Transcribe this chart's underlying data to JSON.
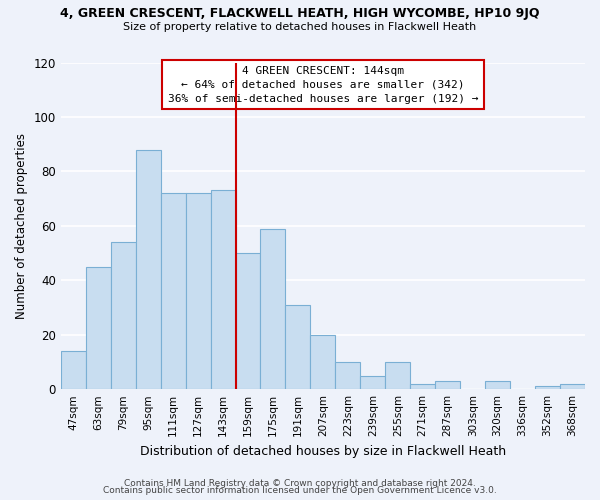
{
  "title": "4, GREEN CRESCENT, FLACKWELL HEATH, HIGH WYCOMBE, HP10 9JQ",
  "subtitle": "Size of property relative to detached houses in Flackwell Heath",
  "xlabel": "Distribution of detached houses by size in Flackwell Heath",
  "ylabel": "Number of detached properties",
  "bar_color": "#c8ddf0",
  "bar_edge_color": "#7aafd4",
  "categories": [
    "47sqm",
    "63sqm",
    "79sqm",
    "95sqm",
    "111sqm",
    "127sqm",
    "143sqm",
    "159sqm",
    "175sqm",
    "191sqm",
    "207sqm",
    "223sqm",
    "239sqm",
    "255sqm",
    "271sqm",
    "287sqm",
    "303sqm",
    "320sqm",
    "336sqm",
    "352sqm",
    "368sqm"
  ],
  "values": [
    14,
    45,
    54,
    88,
    72,
    72,
    73,
    50,
    59,
    31,
    20,
    10,
    5,
    10,
    2,
    3,
    0,
    3,
    0,
    1,
    2
  ],
  "ylim": [
    0,
    120
  ],
  "annotation_title": "4 GREEN CRESCENT: 144sqm",
  "annotation_line1": "← 64% of detached houses are smaller (342)",
  "annotation_line2": "36% of semi-detached houses are larger (192) →",
  "vline_color": "#cc0000",
  "annotation_box_edge": "#cc0000",
  "footer1": "Contains HM Land Registry data © Crown copyright and database right 2024.",
  "footer2": "Contains public sector information licensed under the Open Government Licence v3.0.",
  "background_color": "#eef2fa"
}
